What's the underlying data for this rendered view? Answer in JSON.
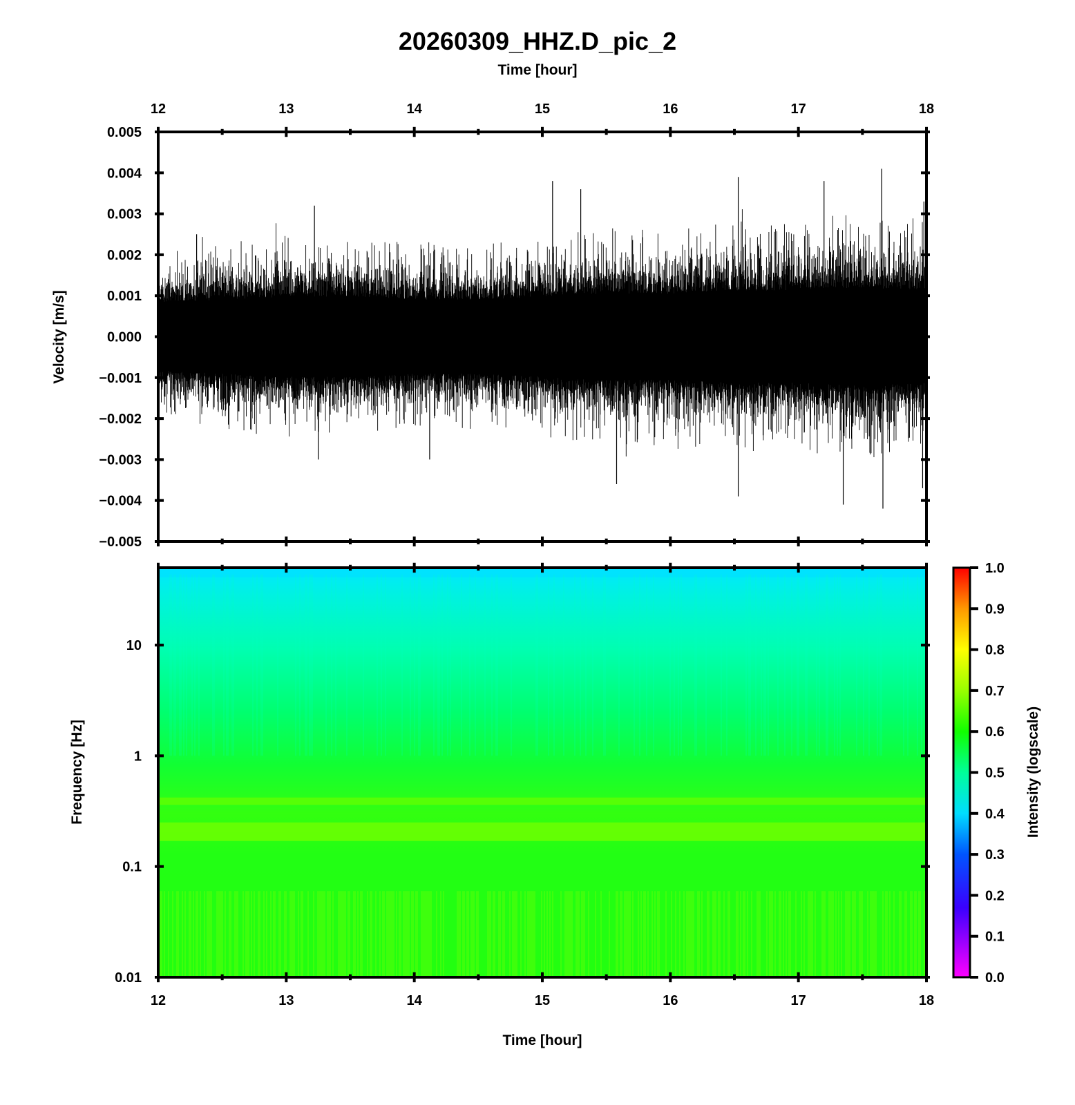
{
  "chart_data": [
    {
      "type": "line",
      "title": "20260309_HHZ.D_pic_2",
      "xlabel": "Time [hour]",
      "ylabel": "Velocity [m/s]",
      "x": {
        "range": [
          12,
          18
        ],
        "ticks": [
          "12",
          "13",
          "14",
          "15",
          "16",
          "17",
          "18"
        ]
      },
      "y": {
        "range": [
          -0.005,
          0.005
        ],
        "ticks": [
          "0.005",
          "0.004",
          "0.003",
          "0.002",
          "0.001",
          "0.000",
          "−0.001",
          "−0.002",
          "−0.003",
          "−0.004",
          "−0.005"
        ]
      },
      "series": [
        {
          "values_description_free": true,
          "envelope_x": [
            12.0,
            12.5,
            13.0,
            13.5,
            14.0,
            14.5,
            15.0,
            15.5,
            16.0,
            16.5,
            17.0,
            17.5,
            18.0
          ],
          "envelope_amp": [
            0.0011,
            0.0012,
            0.0013,
            0.0013,
            0.0012,
            0.0012,
            0.0013,
            0.0014,
            0.0014,
            0.0015,
            0.0015,
            0.0016,
            0.0015
          ],
          "peaks": [
            {
              "x": 12.3,
              "y": 0.0025
            },
            {
              "x": 13.22,
              "y": 0.0032
            },
            {
              "x": 13.25,
              "y": -0.003
            },
            {
              "x": 14.12,
              "y": -0.003
            },
            {
              "x": 15.08,
              "y": 0.0038
            },
            {
              "x": 15.3,
              "y": 0.0036
            },
            {
              "x": 15.58,
              "y": -0.0036
            },
            {
              "x": 16.53,
              "y": 0.0039
            },
            {
              "x": 16.53,
              "y": -0.0039
            },
            {
              "x": 17.2,
              "y": 0.0038
            },
            {
              "x": 17.35,
              "y": -0.0041
            },
            {
              "x": 17.65,
              "y": 0.0041
            },
            {
              "x": 17.66,
              "y": -0.0042
            },
            {
              "x": 17.98,
              "y": 0.0033
            },
            {
              "x": 17.97,
              "y": -0.0037
            }
          ]
        }
      ]
    },
    {
      "type": "heatmap",
      "xlabel": "Time [hour]",
      "ylabel": "Frequency [Hz]",
      "x": {
        "range": [
          12,
          18
        ],
        "ticks": [
          "12",
          "13",
          "14",
          "15",
          "16",
          "17",
          "18"
        ]
      },
      "y": {
        "scale": "log",
        "range": [
          0.01,
          50
        ],
        "ticks": [
          "10",
          "1",
          "0.1",
          "0.01"
        ],
        "tick_values": [
          10,
          1,
          0.1,
          0.01
        ]
      },
      "colorbar": {
        "label": "Intensity (logscale)",
        "range": [
          0.0,
          1.0
        ],
        "ticks": [
          "1.0",
          "0.9",
          "0.8",
          "0.7",
          "0.6",
          "0.5",
          "0.4",
          "0.3",
          "0.2",
          "0.1",
          "0.0"
        ],
        "colors": [
          "#ff00ff",
          "#4400ff",
          "#0066ff",
          "#00ffff",
          "#00ff66",
          "#22ff00",
          "#aaff00",
          "#ffff00",
          "#ff8800",
          "#ff0000"
        ]
      },
      "intensity_profile": [
        {
          "freq": 50,
          "value": 0.42
        },
        {
          "freq": 20,
          "value": 0.46
        },
        {
          "freq": 10,
          "value": 0.5
        },
        {
          "freq": 3,
          "value": 0.54
        },
        {
          "freq": 1,
          "value": 0.58
        },
        {
          "freq": 0.4,
          "value": 0.64
        },
        {
          "freq": 0.2,
          "value": 0.66
        },
        {
          "freq": 0.1,
          "value": 0.6
        },
        {
          "freq": 0.01,
          "value": 0.63
        }
      ]
    }
  ]
}
